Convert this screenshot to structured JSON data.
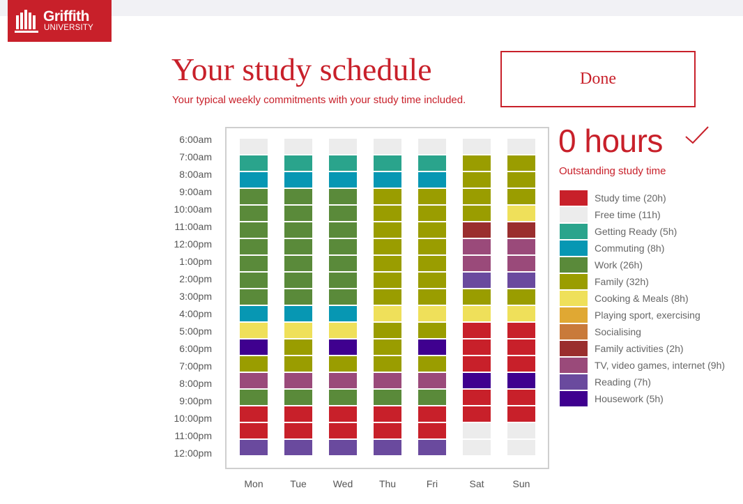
{
  "logo": {
    "line1": "Griffith",
    "line2": "UNIVERSITY"
  },
  "page": {
    "title": "Your study schedule",
    "subtitle": "Your typical weekly commitments with your study time included.",
    "done_label": "Done"
  },
  "summary": {
    "hours": "0 hours",
    "outstanding_label": "Outstanding study time"
  },
  "colors": {
    "accent": "#c8202a",
    "study": "#c8202a",
    "free": "#ececec",
    "ready": "#2aa48c",
    "commute": "#0797b3",
    "work": "#5a8a3a",
    "family": "#9a9d00",
    "cooking": "#efe05a",
    "sport": "#e0a833",
    "social": "#c97a3a",
    "familyact": "#9a2e2e",
    "tv": "#9a4a7a",
    "reading": "#6a4a9e",
    "housework": "#3f008f"
  },
  "schedule": {
    "times": [
      "6:00am",
      "7:00am",
      "8:00am",
      "9:00am",
      "10:00am",
      "11:00am",
      "12:00pm",
      "1:00pm",
      "2:00pm",
      "3:00pm",
      "4:00pm",
      "5:00pm",
      "6:00pm",
      "7:00pm",
      "8:00pm",
      "9:00pm",
      "10:00pm",
      "11:00pm",
      "12:00pm"
    ],
    "days": [
      "Mon",
      "Tue",
      "Wed",
      "Thu",
      "Fri",
      "Sat",
      "Sun"
    ],
    "columns": [
      [
        "free",
        "ready",
        "commute",
        "work",
        "work",
        "work",
        "work",
        "work",
        "work",
        "work",
        "commute",
        "cooking",
        "housework",
        "family",
        "tv",
        "work",
        "study",
        "study",
        "reading"
      ],
      [
        "free",
        "ready",
        "commute",
        "work",
        "work",
        "work",
        "work",
        "work",
        "work",
        "work",
        "commute",
        "cooking",
        "family",
        "family",
        "tv",
        "work",
        "study",
        "study",
        "reading"
      ],
      [
        "free",
        "ready",
        "commute",
        "work",
        "work",
        "work",
        "work",
        "work",
        "work",
        "work",
        "commute",
        "cooking",
        "housework",
        "family",
        "tv",
        "work",
        "study",
        "study",
        "reading"
      ],
      [
        "free",
        "ready",
        "commute",
        "family",
        "family",
        "family",
        "family",
        "family",
        "family",
        "family",
        "cooking",
        "family",
        "family",
        "family",
        "tv",
        "work",
        "study",
        "study",
        "reading"
      ],
      [
        "free",
        "ready",
        "commute",
        "family",
        "family",
        "family",
        "family",
        "family",
        "family",
        "family",
        "cooking",
        "family",
        "housework",
        "family",
        "tv",
        "work",
        "study",
        "study",
        "reading"
      ],
      [
        "free",
        "family",
        "family",
        "family",
        "family",
        "familyact",
        "tv",
        "tv",
        "reading",
        "family",
        "cooking",
        "study",
        "study",
        "study",
        "housework",
        "study",
        "study",
        "free",
        "free"
      ],
      [
        "free",
        "family",
        "family",
        "family",
        "cooking",
        "familyact",
        "tv",
        "tv",
        "reading",
        "family",
        "cooking",
        "study",
        "study",
        "study",
        "housework",
        "study",
        "study",
        "free",
        "free"
      ]
    ]
  },
  "legend": [
    {
      "key": "study",
      "label": "Study time (20h)"
    },
    {
      "key": "free",
      "label": "Free time (11h)"
    },
    {
      "key": "ready",
      "label": "Getting Ready (5h)"
    },
    {
      "key": "commute",
      "label": "Commuting (8h)"
    },
    {
      "key": "work",
      "label": "Work (26h)"
    },
    {
      "key": "family",
      "label": "Family (32h)"
    },
    {
      "key": "cooking",
      "label": "Cooking & Meals (8h)"
    },
    {
      "key": "sport",
      "label": "Playing sport, exercising"
    },
    {
      "key": "social",
      "label": "Socialising"
    },
    {
      "key": "familyact",
      "label": "Family activities (2h)"
    },
    {
      "key": "tv",
      "label": "TV, video games, internet (9h)"
    },
    {
      "key": "reading",
      "label": "Reading (7h)"
    },
    {
      "key": "housework",
      "label": "Housework (5h)"
    }
  ]
}
